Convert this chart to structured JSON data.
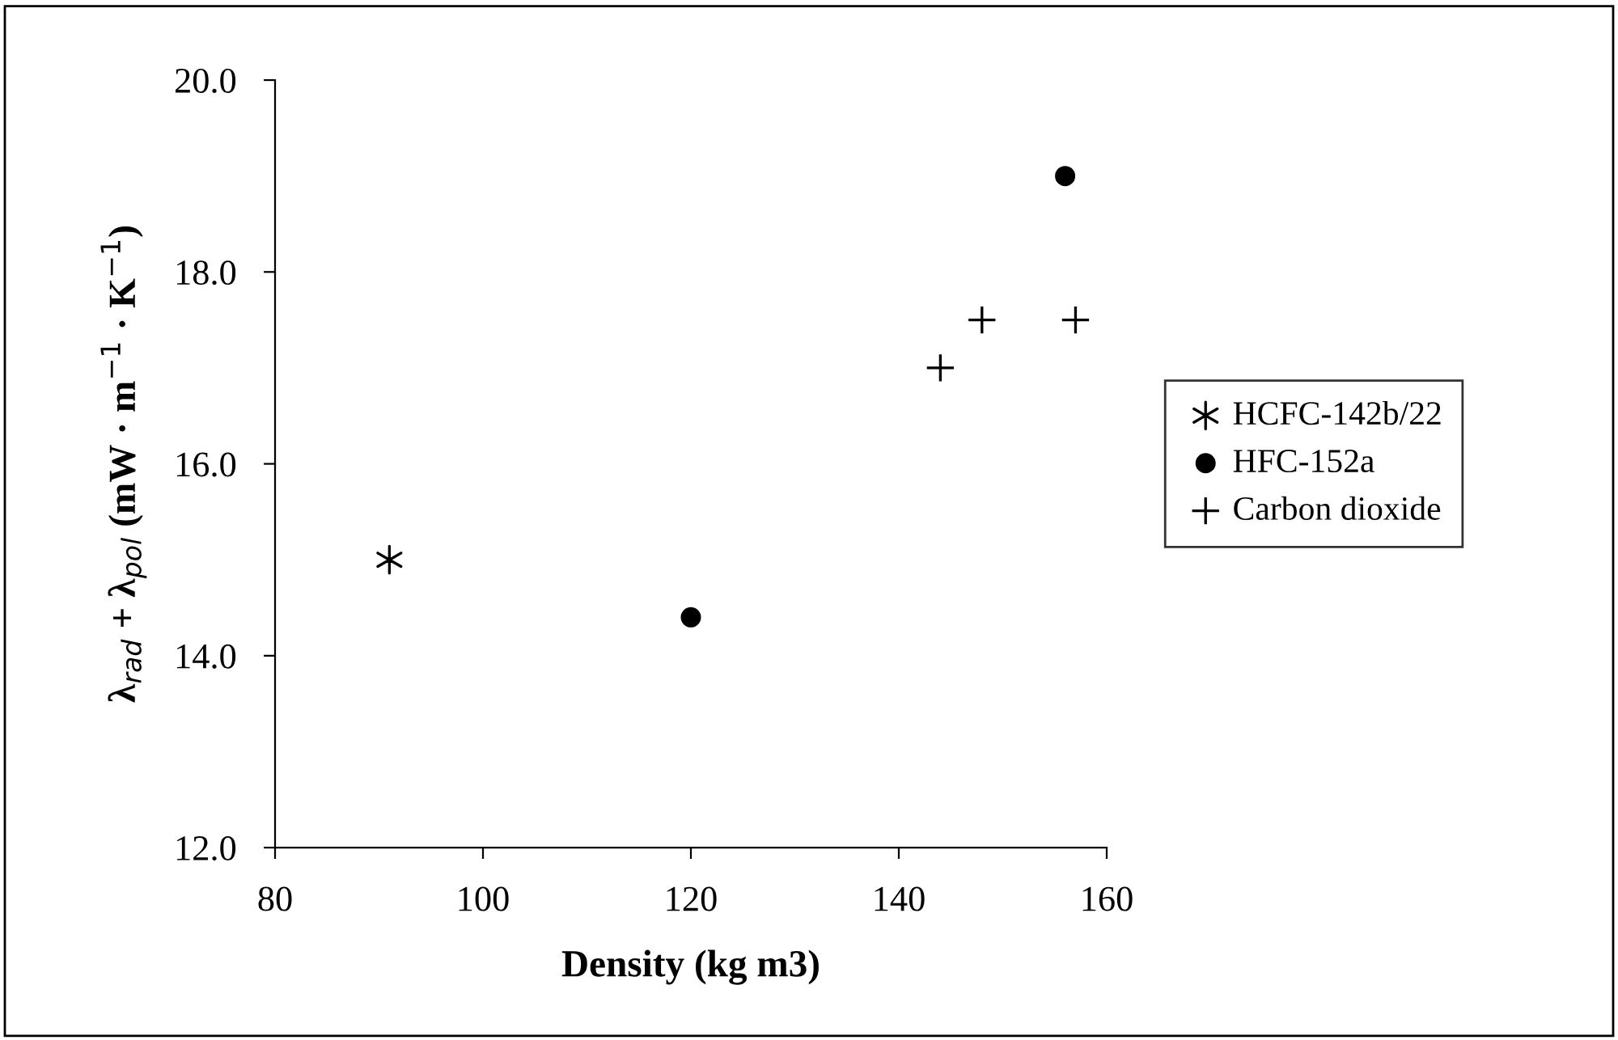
{
  "chart_data": {
    "type": "scatter",
    "xlabel": "Density (kg m3)",
    "ylabel": "λ$_{rad}$ + λ$_{pol}$ (mW · m$^{−1}$ · K$^{−1}$)",
    "series": [
      {
        "name": "HCFC-142b/22",
        "color": "#000000",
        "marker": "cross",
        "x": [
          91
        ],
        "values": [
          15.0
        ]
      },
      {
        "name": "HFC-152a",
        "color": "#000000",
        "marker": "circle",
        "x": [
          120,
          156
        ],
        "values": [
          14.4,
          19.0
        ]
      },
      {
        "name": "Carbon dioxide",
        "color": "#000000",
        "x": [
          144,
          148,
          157
        ],
        "values": [
          17.0,
          17.5,
          17.5
        ]
      }
    ],
    "xlim": [
      80,
      160
    ],
    "xticks": [
      80,
      100,
      120,
      140,
      160
    ],
    "ylim": [
      12,
      20
    ],
    "yticks": [
      {
        "value": 12,
        "label": "12.0"
      },
      {
        "value": 14,
        "label": "14.0"
      },
      {
        "value": 16,
        "label": "16.0"
      },
      {
        "value": 18,
        "label": "18.0"
      },
      {
        "value": 20,
        "label": "20.0"
      }
    ],
    "grid": false,
    "legend": "right"
  }
}
